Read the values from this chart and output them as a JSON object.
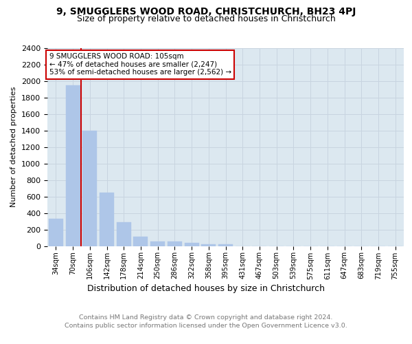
{
  "title": "9, SMUGGLERS WOOD ROAD, CHRISTCHURCH, BH23 4PJ",
  "subtitle": "Size of property relative to detached houses in Christchurch",
  "xlabel": "Distribution of detached houses by size in Christchurch",
  "ylabel": "Number of detached properties",
  "categories": [
    "34sqm",
    "70sqm",
    "106sqm",
    "142sqm",
    "178sqm",
    "214sqm",
    "250sqm",
    "286sqm",
    "322sqm",
    "358sqm",
    "395sqm",
    "431sqm",
    "467sqm",
    "503sqm",
    "539sqm",
    "575sqm",
    "611sqm",
    "647sqm",
    "683sqm",
    "719sqm",
    "755sqm"
  ],
  "values": [
    330,
    1950,
    1400,
    645,
    285,
    110,
    55,
    55,
    38,
    22,
    18,
    0,
    0,
    0,
    0,
    0,
    0,
    0,
    0,
    0,
    0
  ],
  "bar_color": "#aec6e8",
  "bar_edge_color": "#aec6e8",
  "vline_color": "#cc0000",
  "annotation_line1": "9 SMUGGLERS WOOD ROAD: 105sqm",
  "annotation_line2": "← 47% of detached houses are smaller (2,247)",
  "annotation_line3": "53% of semi-detached houses are larger (2,562) →",
  "annotation_box_color": "#cc0000",
  "ylim": [
    0,
    2400
  ],
  "yticks": [
    0,
    200,
    400,
    600,
    800,
    1000,
    1200,
    1400,
    1600,
    1800,
    2000,
    2200,
    2400
  ],
  "grid_color": "#c8d4e0",
  "bg_color": "#dce8f0",
  "footer_line1": "Contains HM Land Registry data © Crown copyright and database right 2024.",
  "footer_line2": "Contains public sector information licensed under the Open Government Licence v3.0.",
  "title_fontsize": 10,
  "subtitle_fontsize": 9
}
